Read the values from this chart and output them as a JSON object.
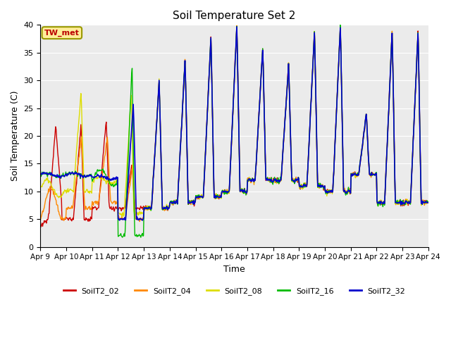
{
  "title": "Soil Temperature Set 2",
  "xlabel": "Time",
  "ylabel": "Soil Temperature (C)",
  "ylim": [
    0,
    40
  ],
  "series_labels": [
    "SoilT2_02",
    "SoilT2_04",
    "SoilT2_08",
    "SoilT2_16",
    "SoilT2_32"
  ],
  "series_colors": [
    "#cc0000",
    "#ff8800",
    "#dddd00",
    "#00bb00",
    "#0000cc"
  ],
  "xtick_labels": [
    "Apr 9",
    "Apr 10",
    "Apr 11",
    "Apr 12",
    "Apr 13",
    "Apr 14",
    "Apr 15",
    "Apr 16",
    "Apr 17",
    "Apr 18",
    "Apr 19",
    "Apr 20",
    "Apr 21",
    "Apr 22",
    "Apr 23",
    "Apr 24"
  ],
  "bg_color": "#ebebeb",
  "annotation_text": "TW_met",
  "annotation_box_color": "#ffee99",
  "annotation_text_color": "#bb0000",
  "annotation_border_color": "#999900"
}
